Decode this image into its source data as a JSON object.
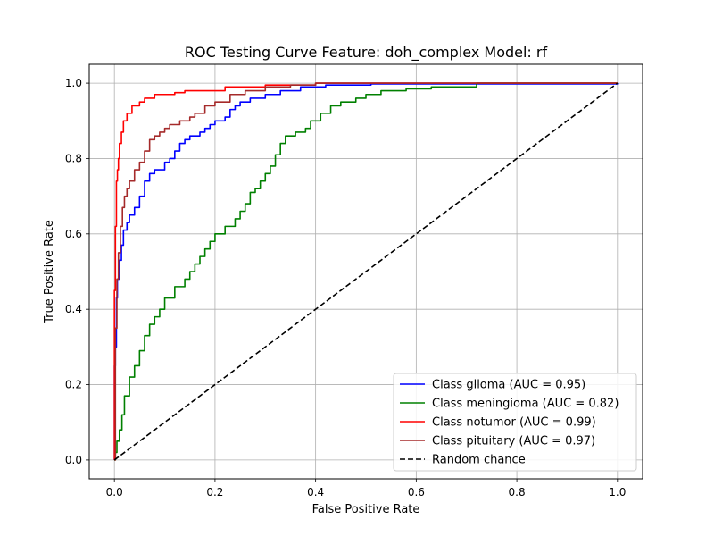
{
  "chart_data": {
    "type": "line",
    "title": "ROC Testing Curve Feature: doh_complex Model: rf",
    "xlabel": "False Positive Rate",
    "ylabel": "True Positive Rate",
    "xlim": [
      -0.05,
      1.05
    ],
    "ylim": [
      -0.05,
      1.05
    ],
    "xticks": [
      {
        "v": 0.0,
        "label": "0.0"
      },
      {
        "v": 0.2,
        "label": "0.2"
      },
      {
        "v": 0.4,
        "label": "0.4"
      },
      {
        "v": 0.6,
        "label": "0.6"
      },
      {
        "v": 0.8,
        "label": "0.8"
      },
      {
        "v": 1.0,
        "label": "1.0"
      }
    ],
    "yticks": [
      {
        "v": 0.0,
        "label": "0.0"
      },
      {
        "v": 0.2,
        "label": "0.2"
      },
      {
        "v": 0.4,
        "label": "0.4"
      },
      {
        "v": 0.6,
        "label": "0.6"
      },
      {
        "v": 0.8,
        "label": "0.8"
      },
      {
        "v": 1.0,
        "label": "1.0"
      }
    ],
    "grid": true,
    "legend_position": "bottom-right",
    "series": [
      {
        "name": "Class glioma (AUC = 0.95)",
        "color": "#0000ff",
        "dashed": false,
        "points": [
          [
            0,
            0
          ],
          [
            0,
            0.25
          ],
          [
            0.002,
            0.3
          ],
          [
            0.004,
            0.43
          ],
          [
            0.006,
            0.48
          ],
          [
            0.01,
            0.53
          ],
          [
            0.014,
            0.57
          ],
          [
            0.018,
            0.61
          ],
          [
            0.025,
            0.63
          ],
          [
            0.03,
            0.65
          ],
          [
            0.04,
            0.67
          ],
          [
            0.05,
            0.7
          ],
          [
            0.06,
            0.74
          ],
          [
            0.07,
            0.76
          ],
          [
            0.08,
            0.77
          ],
          [
            0.1,
            0.79
          ],
          [
            0.11,
            0.8
          ],
          [
            0.12,
            0.82
          ],
          [
            0.13,
            0.84
          ],
          [
            0.14,
            0.85
          ],
          [
            0.15,
            0.86
          ],
          [
            0.17,
            0.87
          ],
          [
            0.18,
            0.88
          ],
          [
            0.19,
            0.89
          ],
          [
            0.2,
            0.9
          ],
          [
            0.22,
            0.91
          ],
          [
            0.23,
            0.93
          ],
          [
            0.24,
            0.94
          ],
          [
            0.25,
            0.95
          ],
          [
            0.27,
            0.96
          ],
          [
            0.3,
            0.97
          ],
          [
            0.33,
            0.98
          ],
          [
            0.37,
            0.99
          ],
          [
            0.42,
            0.995
          ],
          [
            0.51,
            0.998
          ],
          [
            1,
            1
          ]
        ]
      },
      {
        "name": "Class meningioma (AUC = 0.82)",
        "color": "#008000",
        "dashed": false,
        "points": [
          [
            0,
            0
          ],
          [
            0.002,
            0.02
          ],
          [
            0.005,
            0.05
          ],
          [
            0.01,
            0.08
          ],
          [
            0.015,
            0.12
          ],
          [
            0.02,
            0.17
          ],
          [
            0.03,
            0.22
          ],
          [
            0.04,
            0.25
          ],
          [
            0.05,
            0.29
          ],
          [
            0.06,
            0.33
          ],
          [
            0.07,
            0.36
          ],
          [
            0.08,
            0.38
          ],
          [
            0.09,
            0.4
          ],
          [
            0.1,
            0.43
          ],
          [
            0.12,
            0.46
          ],
          [
            0.14,
            0.48
          ],
          [
            0.15,
            0.5
          ],
          [
            0.16,
            0.52
          ],
          [
            0.17,
            0.54
          ],
          [
            0.18,
            0.56
          ],
          [
            0.19,
            0.58
          ],
          [
            0.2,
            0.6
          ],
          [
            0.22,
            0.62
          ],
          [
            0.24,
            0.64
          ],
          [
            0.25,
            0.66
          ],
          [
            0.26,
            0.68
          ],
          [
            0.27,
            0.71
          ],
          [
            0.28,
            0.72
          ],
          [
            0.29,
            0.74
          ],
          [
            0.3,
            0.76
          ],
          [
            0.31,
            0.78
          ],
          [
            0.32,
            0.81
          ],
          [
            0.33,
            0.84
          ],
          [
            0.34,
            0.86
          ],
          [
            0.36,
            0.87
          ],
          [
            0.38,
            0.88
          ],
          [
            0.39,
            0.9
          ],
          [
            0.41,
            0.92
          ],
          [
            0.43,
            0.94
          ],
          [
            0.45,
            0.95
          ],
          [
            0.48,
            0.96
          ],
          [
            0.5,
            0.97
          ],
          [
            0.53,
            0.98
          ],
          [
            0.58,
            0.985
          ],
          [
            0.63,
            0.99
          ],
          [
            0.72,
            1.0
          ],
          [
            1,
            1
          ]
        ]
      },
      {
        "name": "Class notumor (AUC = 0.99)",
        "color": "#ff0000",
        "dashed": false,
        "points": [
          [
            0,
            0
          ],
          [
            0,
            0.45
          ],
          [
            0.002,
            0.62
          ],
          [
            0.004,
            0.74
          ],
          [
            0.006,
            0.77
          ],
          [
            0.008,
            0.8
          ],
          [
            0.01,
            0.84
          ],
          [
            0.014,
            0.87
          ],
          [
            0.018,
            0.9
          ],
          [
            0.025,
            0.92
          ],
          [
            0.035,
            0.94
          ],
          [
            0.05,
            0.95
          ],
          [
            0.06,
            0.96
          ],
          [
            0.08,
            0.97
          ],
          [
            0.12,
            0.975
          ],
          [
            0.14,
            0.98
          ],
          [
            0.22,
            0.99
          ],
          [
            0.3,
            0.995
          ],
          [
            0.4,
            1.0
          ],
          [
            1,
            1
          ]
        ]
      },
      {
        "name": "Class pituitary (AUC = 0.97)",
        "color": "#a52a2a",
        "dashed": false,
        "points": [
          [
            0,
            0
          ],
          [
            0.002,
            0.35
          ],
          [
            0.005,
            0.48
          ],
          [
            0.008,
            0.55
          ],
          [
            0.012,
            0.62
          ],
          [
            0.016,
            0.67
          ],
          [
            0.02,
            0.7
          ],
          [
            0.025,
            0.72
          ],
          [
            0.03,
            0.74
          ],
          [
            0.04,
            0.77
          ],
          [
            0.05,
            0.79
          ],
          [
            0.06,
            0.82
          ],
          [
            0.07,
            0.85
          ],
          [
            0.08,
            0.86
          ],
          [
            0.09,
            0.87
          ],
          [
            0.1,
            0.88
          ],
          [
            0.11,
            0.89
          ],
          [
            0.13,
            0.9
          ],
          [
            0.15,
            0.91
          ],
          [
            0.16,
            0.92
          ],
          [
            0.18,
            0.94
          ],
          [
            0.2,
            0.95
          ],
          [
            0.23,
            0.97
          ],
          [
            0.26,
            0.98
          ],
          [
            0.3,
            0.99
          ],
          [
            0.35,
            0.995
          ],
          [
            0.4,
            1.0
          ],
          [
            1,
            1
          ]
        ]
      },
      {
        "name": "Random chance",
        "color": "#000000",
        "dashed": true,
        "points": [
          [
            0,
            0
          ],
          [
            1,
            1
          ]
        ]
      }
    ]
  }
}
